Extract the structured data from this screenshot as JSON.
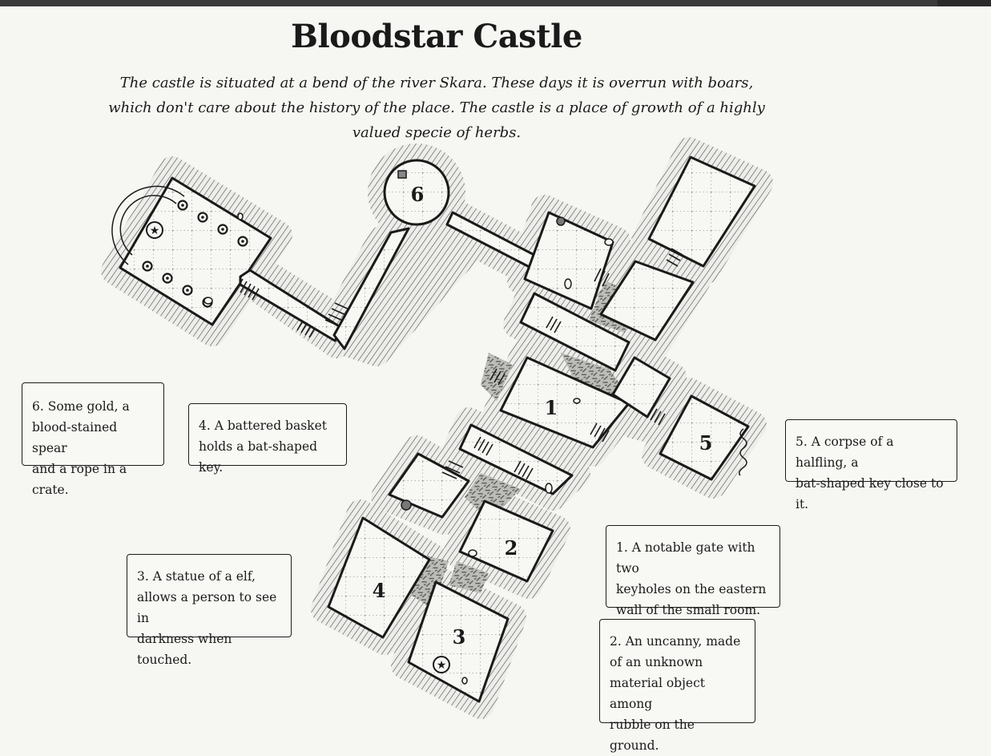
{
  "map": {
    "title": "Bloodstar Castle",
    "description": "The castle is situated at a bend of the river Skara. These days it is overrun with boars, which don't care about the history of the place. The castle is a place of growth of a highly valued specie of herbs.",
    "room_labels": {
      "r1": "1",
      "r2": "2",
      "r3": "3",
      "r4": "4",
      "r5": "5",
      "r6": "6"
    },
    "notes": {
      "n6": "6. Some gold, a\nblood-stained spear\nand a rope in a crate.",
      "n4": "4. A battered basket\nholds a bat-shaped key.",
      "n5": "5. A corpse of a halfling, a\nbat-shaped key close to it.",
      "n1": "1. A notable gate with two\nkeyholes on the eastern\nwall of the small room.",
      "n3": "3. A statue of a elf,\nallows a person to see in\ndarkness when touched.",
      "n2": "2. An uncanny, made\nof an unknown\nmaterial object among\nrubble on the ground."
    }
  },
  "style": {
    "background": "#f6f6f2",
    "ink": "#1a1a1a",
    "floor": "#f7f7f3",
    "rubble": "#5a5a5a"
  }
}
